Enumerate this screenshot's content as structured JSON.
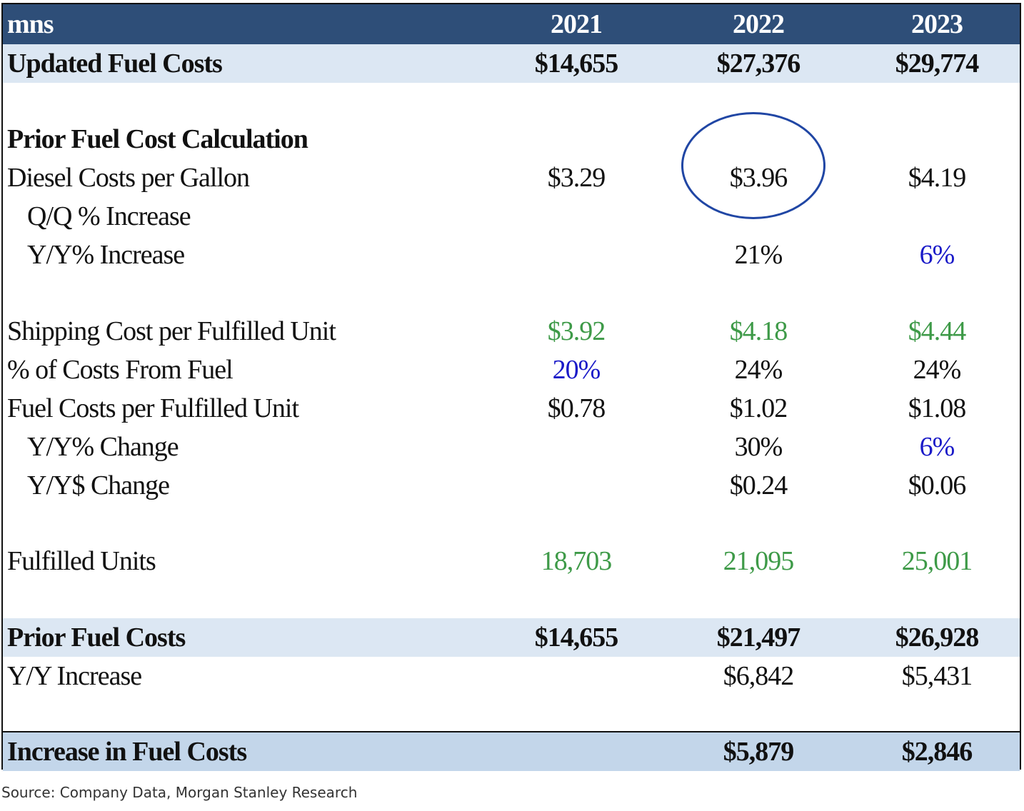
{
  "header": {
    "unit": "mns",
    "years": [
      "2021",
      "2022",
      "2023"
    ]
  },
  "updated_fuel_costs": {
    "label": "Updated Fuel Costs",
    "values": [
      "$14,655",
      "$27,376",
      "$29,774"
    ]
  },
  "prior_section_title": "Prior Fuel Cost Calculation",
  "diesel": {
    "label": "Diesel Costs per Gallon",
    "values": [
      "$3.29",
      "$3.96",
      "$4.19"
    ]
  },
  "qq_increase": {
    "label": "Q/Q % Increase"
  },
  "yy_increase_pct": {
    "label": "Y/Y% Increase",
    "values": [
      "",
      "21%",
      "6%"
    ]
  },
  "shipping_cost": {
    "label": "Shipping Cost per Fulfilled Unit",
    "values": [
      "$3.92",
      "$4.18",
      "$4.44"
    ]
  },
  "pct_from_fuel": {
    "label": "% of Costs From Fuel",
    "values": [
      "20%",
      "24%",
      "24%"
    ]
  },
  "fuel_per_unit": {
    "label": "Fuel Costs per Fulfilled Unit",
    "values": [
      "$0.78",
      "$1.02",
      "$1.08"
    ]
  },
  "yy_pct_change": {
    "label": "Y/Y% Change",
    "values": [
      "",
      "30%",
      "6%"
    ]
  },
  "yy_dollar_change": {
    "label": "Y/Y$ Change",
    "values": [
      "",
      "$0.24",
      "$0.06"
    ]
  },
  "fulfilled_units": {
    "label": "Fulfilled Units",
    "values": [
      "18,703",
      "21,095",
      "25,001"
    ]
  },
  "prior_fuel_costs": {
    "label": "Prior Fuel Costs",
    "values": [
      "$14,655",
      "$21,497",
      "$26,928"
    ]
  },
  "yy_increase": {
    "label": "Y/Y Increase",
    "values": [
      "",
      "$6,842",
      "$5,431"
    ]
  },
  "increase_fuel_costs": {
    "label": "Increase in Fuel Costs",
    "values": [
      "",
      "$5,879",
      "$2,846"
    ]
  },
  "source": "Source: Company Data, Morgan Stanley Research",
  "colors": {
    "header_bg": "#2e4e78",
    "band_bg": "#dce7f3",
    "final_bg": "#c3d6ea",
    "green": "#3e9a48",
    "blue": "#1a1ac8",
    "circle": "#2046a4"
  }
}
